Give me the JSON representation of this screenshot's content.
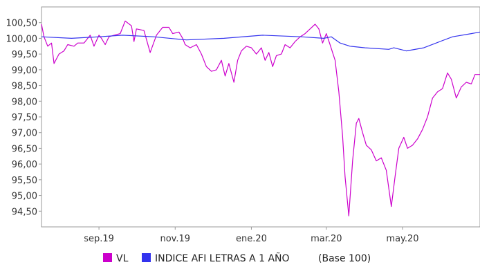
{
  "chart_data": {
    "type": "line",
    "title": "",
    "xlabel": "",
    "ylabel": "",
    "ylim": [
      94.0,
      101.0
    ],
    "yticks": [
      "94,50",
      "95,00",
      "95,50",
      "96,00",
      "96,50",
      "97,00",
      "97,50",
      "98,00",
      "98,50",
      "99,00",
      "99,50",
      "100,00",
      "100,50"
    ],
    "ytick_values": [
      94.5,
      95.0,
      95.5,
      96.0,
      96.5,
      97.0,
      97.5,
      98.0,
      98.5,
      99.0,
      99.5,
      100.0,
      100.5
    ],
    "xlim": [
      "2019-07-17",
      "2020-07-02"
    ],
    "xticks": [
      "sep.19",
      "nov.19",
      "ene.20",
      "mar.20",
      "may.20"
    ],
    "xtick_dates": [
      "2019-09-01",
      "2019-11-01",
      "2020-01-01",
      "2020-03-01",
      "2020-05-01"
    ],
    "legend": {
      "position": "bottom",
      "base_note": "(Base 100)"
    },
    "series": [
      {
        "name": "VL",
        "color": "#cc00cc",
        "points": [
          [
            "2019-07-17",
            100.45
          ],
          [
            "2019-07-19",
            100.05
          ],
          [
            "2019-07-22",
            99.75
          ],
          [
            "2019-07-25",
            99.85
          ],
          [
            "2019-07-27",
            99.2
          ],
          [
            "2019-07-31",
            99.5
          ],
          [
            "2019-08-04",
            99.6
          ],
          [
            "2019-08-07",
            99.8
          ],
          [
            "2019-08-12",
            99.75
          ],
          [
            "2019-08-15",
            99.85
          ],
          [
            "2019-08-20",
            99.85
          ],
          [
            "2019-08-25",
            100.1
          ],
          [
            "2019-08-28",
            99.75
          ],
          [
            "2019-09-01",
            100.1
          ],
          [
            "2019-09-03",
            100.0
          ],
          [
            "2019-09-06",
            99.8
          ],
          [
            "2019-09-09",
            100.05
          ],
          [
            "2019-09-13",
            100.1
          ],
          [
            "2019-09-18",
            100.15
          ],
          [
            "2019-09-22",
            100.55
          ],
          [
            "2019-09-27",
            100.4
          ],
          [
            "2019-09-29",
            99.9
          ],
          [
            "2019-10-01",
            100.3
          ],
          [
            "2019-10-07",
            100.25
          ],
          [
            "2019-10-12",
            99.55
          ],
          [
            "2019-10-17",
            100.1
          ],
          [
            "2019-10-22",
            100.35
          ],
          [
            "2019-10-27",
            100.35
          ],
          [
            "2019-10-30",
            100.15
          ],
          [
            "2019-11-04",
            100.2
          ],
          [
            "2019-11-07",
            100.0
          ],
          [
            "2019-11-09",
            99.8
          ],
          [
            "2019-11-13",
            99.7
          ],
          [
            "2019-11-18",
            99.8
          ],
          [
            "2019-11-22",
            99.5
          ],
          [
            "2019-11-26",
            99.1
          ],
          [
            "2019-11-30",
            98.95
          ],
          [
            "2019-12-04",
            99.0
          ],
          [
            "2019-12-08",
            99.3
          ],
          [
            "2019-12-11",
            98.8
          ],
          [
            "2019-12-14",
            99.2
          ],
          [
            "2019-12-18",
            98.6
          ],
          [
            "2019-12-21",
            99.3
          ],
          [
            "2019-12-24",
            99.6
          ],
          [
            "2019-12-28",
            99.75
          ],
          [
            "2020-01-01",
            99.7
          ],
          [
            "2020-01-05",
            99.5
          ],
          [
            "2020-01-09",
            99.7
          ],
          [
            "2020-01-12",
            99.3
          ],
          [
            "2020-01-15",
            99.55
          ],
          [
            "2020-01-18",
            99.1
          ],
          [
            "2020-01-21",
            99.45
          ],
          [
            "2020-01-25",
            99.5
          ],
          [
            "2020-01-28",
            99.8
          ],
          [
            "2020-02-01",
            99.7
          ],
          [
            "2020-02-05",
            99.9
          ],
          [
            "2020-02-09",
            100.05
          ],
          [
            "2020-02-13",
            100.15
          ],
          [
            "2020-02-17",
            100.3
          ],
          [
            "2020-02-21",
            100.45
          ],
          [
            "2020-02-24",
            100.3
          ],
          [
            "2020-02-27",
            99.85
          ],
          [
            "2020-03-01",
            100.15
          ],
          [
            "2020-03-04",
            99.8
          ],
          [
            "2020-03-08",
            99.3
          ],
          [
            "2020-03-11",
            98.3
          ],
          [
            "2020-03-14",
            96.9
          ],
          [
            "2020-03-16",
            95.6
          ],
          [
            "2020-03-19",
            94.35
          ],
          [
            "2020-03-22",
            96.1
          ],
          [
            "2020-03-25",
            97.3
          ],
          [
            "2020-03-27",
            97.45
          ],
          [
            "2020-03-30",
            97.0
          ],
          [
            "2020-04-02",
            96.6
          ],
          [
            "2020-04-06",
            96.45
          ],
          [
            "2020-04-10",
            96.1
          ],
          [
            "2020-04-14",
            96.2
          ],
          [
            "2020-04-18",
            95.8
          ],
          [
            "2020-04-22",
            94.65
          ],
          [
            "2020-04-25",
            95.6
          ],
          [
            "2020-04-28",
            96.5
          ],
          [
            "2020-05-02",
            96.85
          ],
          [
            "2020-05-05",
            96.5
          ],
          [
            "2020-05-09",
            96.6
          ],
          [
            "2020-05-13",
            96.8
          ],
          [
            "2020-05-17",
            97.1
          ],
          [
            "2020-05-21",
            97.5
          ],
          [
            "2020-05-25",
            98.1
          ],
          [
            "2020-05-29",
            98.3
          ],
          [
            "2020-06-02",
            98.4
          ],
          [
            "2020-06-06",
            98.9
          ],
          [
            "2020-06-09",
            98.7
          ],
          [
            "2020-06-13",
            98.1
          ],
          [
            "2020-06-17",
            98.45
          ],
          [
            "2020-06-21",
            98.6
          ],
          [
            "2020-06-25",
            98.55
          ],
          [
            "2020-06-28",
            98.85
          ],
          [
            "2020-07-02",
            98.85
          ]
        ]
      },
      {
        "name": "INDICE AFI LETRAS A 1 AÑO",
        "color": "#3333ee",
        "points": [
          [
            "2019-07-17",
            100.05
          ],
          [
            "2019-08-10",
            100.0
          ],
          [
            "2019-09-01",
            100.05
          ],
          [
            "2019-09-20",
            100.1
          ],
          [
            "2019-10-15",
            100.05
          ],
          [
            "2019-11-10",
            99.95
          ],
          [
            "2019-12-10",
            100.0
          ],
          [
            "2020-01-10",
            100.1
          ],
          [
            "2020-02-10",
            100.05
          ],
          [
            "2020-02-28",
            100.0
          ],
          [
            "2020-03-05",
            100.05
          ],
          [
            "2020-03-12",
            99.85
          ],
          [
            "2020-03-20",
            99.75
          ],
          [
            "2020-04-01",
            99.7
          ],
          [
            "2020-04-20",
            99.65
          ],
          [
            "2020-04-24",
            99.7
          ],
          [
            "2020-05-04",
            99.6
          ],
          [
            "2020-05-18",
            99.7
          ],
          [
            "2020-05-31",
            99.9
          ],
          [
            "2020-06-10",
            100.05
          ],
          [
            "2020-06-25",
            100.15
          ],
          [
            "2020-07-02",
            100.2
          ]
        ]
      }
    ]
  }
}
